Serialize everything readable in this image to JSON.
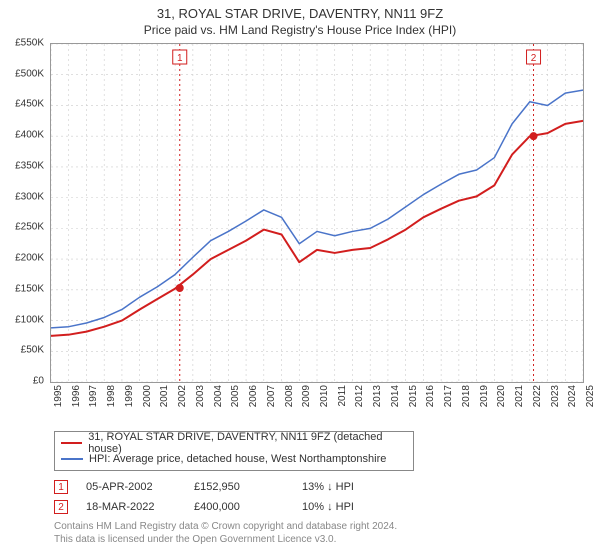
{
  "title": {
    "line1": "31, ROYAL STAR DRIVE, DAVENTRY, NN11 9FZ",
    "line2": "Price paid vs. HM Land Registry's House Price Index (HPI)",
    "fontsize_line1": 13,
    "fontsize_line2": 12
  },
  "chart": {
    "type": "line",
    "background_color": "#ffffff",
    "plot_border_color": "#999999",
    "grid_color": "#cccccc",
    "grid_dash": "2,3",
    "x": {
      "min": 1995,
      "max": 2025,
      "ticks": [
        1995,
        1996,
        1997,
        1998,
        1999,
        2000,
        2001,
        2002,
        2003,
        2004,
        2005,
        2006,
        2007,
        2008,
        2009,
        2010,
        2011,
        2012,
        2013,
        2014,
        2015,
        2016,
        2017,
        2018,
        2019,
        2020,
        2021,
        2022,
        2023,
        2024,
        2025
      ],
      "label_fontsize": 10,
      "label_rotation": -90
    },
    "y": {
      "min": 0,
      "max": 550000,
      "ticks": [
        0,
        50000,
        100000,
        150000,
        200000,
        250000,
        300000,
        350000,
        400000,
        450000,
        500000,
        550000
      ],
      "tick_labels": [
        "£0",
        "£50K",
        "£100K",
        "£150K",
        "£200K",
        "£250K",
        "£300K",
        "£350K",
        "£400K",
        "£450K",
        "£500K",
        "£550K"
      ],
      "label_fontsize": 10
    },
    "series": [
      {
        "name": "31, ROYAL STAR DRIVE, DAVENTRY, NN11 9FZ (detached house)",
        "color": "#d21e1e",
        "line_width": 2,
        "x": [
          1995,
          1996,
          1997,
          1998,
          1999,
          2000,
          2001,
          2002,
          2003,
          2004,
          2005,
          2006,
          2007,
          2008,
          2009,
          2010,
          2011,
          2012,
          2013,
          2014,
          2015,
          2016,
          2017,
          2018,
          2019,
          2020,
          2021,
          2022,
          2023,
          2024,
          2025
        ],
        "y": [
          75000,
          77000,
          82000,
          90000,
          100000,
          118000,
          135000,
          152000,
          175000,
          200000,
          215000,
          230000,
          248000,
          240000,
          195000,
          215000,
          210000,
          215000,
          218000,
          232000,
          248000,
          268000,
          282000,
          295000,
          302000,
          320000,
          370000,
          400000,
          405000,
          420000,
          425000
        ]
      },
      {
        "name": "HPI: Average price, detached house, West Northamptonshire",
        "color": "#4a74c9",
        "line_width": 1.5,
        "x": [
          1995,
          1996,
          1997,
          1998,
          1999,
          2000,
          2001,
          2002,
          2003,
          2004,
          2005,
          2006,
          2007,
          2008,
          2009,
          2010,
          2011,
          2012,
          2013,
          2014,
          2015,
          2016,
          2017,
          2018,
          2019,
          2020,
          2021,
          2022,
          2023,
          2024,
          2025
        ],
        "y": [
          88000,
          90000,
          96000,
          105000,
          118000,
          138000,
          155000,
          175000,
          203000,
          230000,
          245000,
          262000,
          280000,
          268000,
          225000,
          245000,
          238000,
          245000,
          250000,
          265000,
          285000,
          305000,
          322000,
          338000,
          345000,
          365000,
          420000,
          456000,
          450000,
          470000,
          475000
        ]
      }
    ],
    "markers": [
      {
        "label": "1",
        "x": 2002.26,
        "y": 152950,
        "line_color": "#d21e1e",
        "fill_color": "#d21e1e",
        "box_border": "#d21e1e",
        "box_bg": "#ffffff",
        "box_text": "#d21e1e"
      },
      {
        "label": "2",
        "x": 2022.21,
        "y": 400000,
        "line_color": "#d21e1e",
        "fill_color": "#d21e1e",
        "box_border": "#d21e1e",
        "box_bg": "#ffffff",
        "box_text": "#d21e1e"
      }
    ],
    "marker_line_dash": "2,3"
  },
  "legend": {
    "border_color": "#888888",
    "items": [
      {
        "color": "#d21e1e",
        "label": "31, ROYAL STAR DRIVE, DAVENTRY, NN11 9FZ (detached house)"
      },
      {
        "color": "#4a74c9",
        "label": "HPI: Average price, detached house, West Northamptonshire"
      }
    ]
  },
  "events": [
    {
      "num": "1",
      "box_border": "#d21e1e",
      "box_text": "#d21e1e",
      "date": "05-APR-2002",
      "price": "£152,950",
      "delta": "13% ↓ HPI"
    },
    {
      "num": "2",
      "box_border": "#d21e1e",
      "box_text": "#d21e1e",
      "date": "18-MAR-2022",
      "price": "£400,000",
      "delta": "10% ↓ HPI"
    }
  ],
  "footer": {
    "line1": "Contains HM Land Registry data © Crown copyright and database right 2024.",
    "line2": "This data is licensed under the Open Government Licence v3.0.",
    "color": "#888888",
    "fontsize": 10
  }
}
